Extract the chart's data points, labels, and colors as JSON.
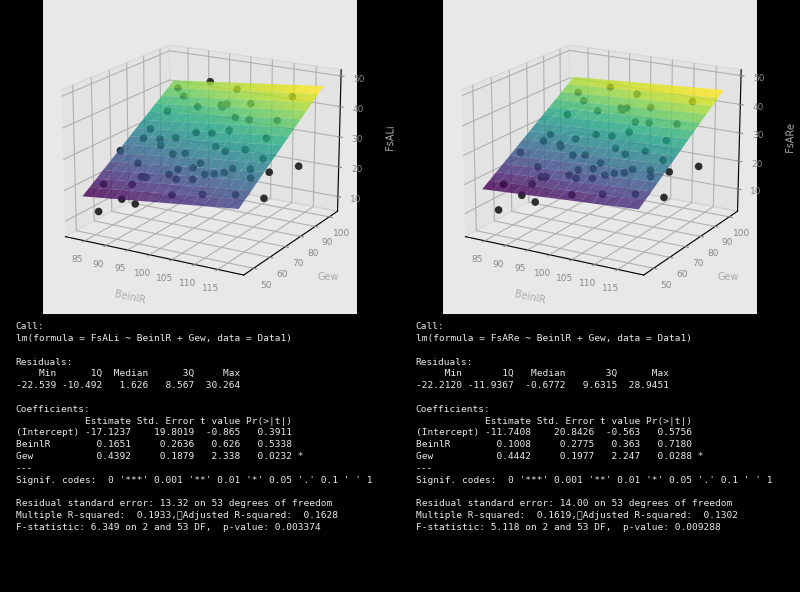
{
  "plot1": {
    "ylabel": "FsALi",
    "xlabel_bein": "BeinlR",
    "xlabel_gew": "Gew",
    "intercept": -17.1237,
    "coef_bein": 0.1651,
    "coef_gew": 0.4392,
    "bein_range": [
      83,
      118
    ],
    "gew_range": [
      48,
      102
    ],
    "bein_ticks": [
      85,
      90,
      95,
      100,
      105,
      110,
      115
    ],
    "gew_ticks": [
      50,
      60,
      70,
      80,
      90,
      100
    ],
    "z_ticks": [
      10,
      20,
      30,
      40,
      50
    ],
    "zlim": [
      5,
      52
    ]
  },
  "plot2": {
    "ylabel": "FsARe",
    "xlabel_bein": "BeinlR",
    "xlabel_gew": "Gew",
    "intercept": -11.7408,
    "coef_bein": 0.1008,
    "coef_gew": 0.4442,
    "bein_range": [
      83,
      118
    ],
    "gew_range": [
      48,
      102
    ],
    "bein_ticks": [
      85,
      90,
      95,
      100,
      105,
      110,
      115
    ],
    "gew_ticks": [
      50,
      60,
      70,
      80,
      90,
      100
    ],
    "z_ticks": [
      10,
      20,
      30,
      40,
      50
    ],
    "zlim": [
      2,
      52
    ]
  },
  "scatter_bein": [
    85,
    87,
    88,
    88,
    89,
    90,
    90,
    91,
    92,
    92,
    93,
    94,
    94,
    95,
    96,
    97,
    97,
    98,
    98,
    99,
    100,
    100,
    101,
    102,
    103,
    103,
    104,
    105,
    105,
    106,
    107,
    108,
    109,
    110,
    111,
    112,
    113,
    114,
    115,
    85,
    88,
    90,
    92,
    94,
    96,
    98,
    100,
    102,
    104,
    106,
    108,
    110,
    112,
    115,
    87,
    91
  ],
  "scatter_gew": [
    55,
    60,
    58,
    72,
    65,
    70,
    85,
    62,
    75,
    80,
    68,
    73,
    90,
    77,
    82,
    63,
    95,
    70,
    88,
    75,
    80,
    92,
    67,
    85,
    73,
    98,
    78,
    83,
    62,
    88,
    75,
    80,
    93,
    68,
    85,
    72,
    78,
    83,
    90,
    52,
    64,
    76,
    61,
    85,
    71,
    93,
    57,
    78,
    66,
    89,
    74,
    62,
    80,
    95,
    68,
    84
  ],
  "scatter_z1": [
    20,
    30,
    15,
    18,
    25,
    35,
    28,
    22,
    40,
    16,
    33,
    27,
    19,
    45,
    32,
    24,
    38,
    29,
    17,
    43,
    50,
    31,
    26,
    42,
    36,
    14,
    22,
    48,
    20,
    37,
    25,
    30,
    19,
    44,
    33,
    27,
    16,
    40,
    46,
    12,
    18,
    28,
    35,
    15,
    23,
    38,
    20,
    30,
    25,
    42,
    17,
    35,
    28,
    22,
    10,
    45
  ],
  "scatter_z2": [
    18,
    28,
    14,
    16,
    22,
    32,
    26,
    20,
    38,
    14,
    30,
    25,
    17,
    43,
    30,
    22,
    36,
    27,
    15,
    41,
    48,
    29,
    24,
    40,
    34,
    12,
    20,
    46,
    18,
    35,
    23,
    28,
    17,
    42,
    31,
    25,
    14,
    38,
    44,
    10,
    16,
    26,
    33,
    13,
    21,
    36,
    18,
    28,
    23,
    40,
    15,
    33,
    26,
    20,
    8,
    43
  ],
  "text_left": "Call:\nlm(formula = FsALi ~ BeinlR + Gew, data = Data1)\n\nResiduals:\n    Min      1Q  Median      3Q     Max\n-22.539 -10.492   1.626   8.567  30.264\n\nCoefficients:\n            Estimate Std. Error t value Pr(>|t|)\n(Intercept) -17.1237    19.8019  -0.865   0.3911\nBeinlR        0.1651     0.2636   0.626   0.5338\nGew           0.4392     0.1879   2.338   0.0232 *\n---\nSignif. codes:  0 '***' 0.001 '**' 0.01 '*' 0.05 '.' 0.1 ' ' 1\n\nResidual standard error: 13.32 on 53 degrees of freedom\nMultiple R-squared:  0.1933,\tAdjusted R-squared:  0.1628\nF-statistic: 6.349 on 2 and 53 DF,  p-value: 0.003374",
  "text_right": "Call:\nlm(formula = FsARe ~ BeinlR + Gew, data = Data1)\n\nResiduals:\n     Min       1Q   Median       3Q      Max\n-22.2120 -11.9367  -0.6772   9.6315  28.9451\n\nCoefficients:\n            Estimate Std. Error t value Pr(>|t|)\n(Intercept) -11.7408    20.8426  -0.563   0.5756\nBeinlR        0.1008     0.2775   0.363   0.7180\nGew           0.4442     0.1977   2.247   0.0288 *\n---\nSignif. codes:  0 '***' 0.001 '**' 0.01 '*' 0.05 '.' 0.1 ' ' 1\n\nResidual standard error: 14.00 on 53 degrees of freedom\nMultiple R-squared:  0.1619,\tAdjusted R-squared:  0.1302\nF-statistic: 5.118 on 2 and 53 DF,  p-value: 0.009288",
  "bg_color": "#000000",
  "text_color": "#e8e8e8",
  "plot_bg": "#e8e8e8",
  "elev": 18,
  "azim": -60
}
